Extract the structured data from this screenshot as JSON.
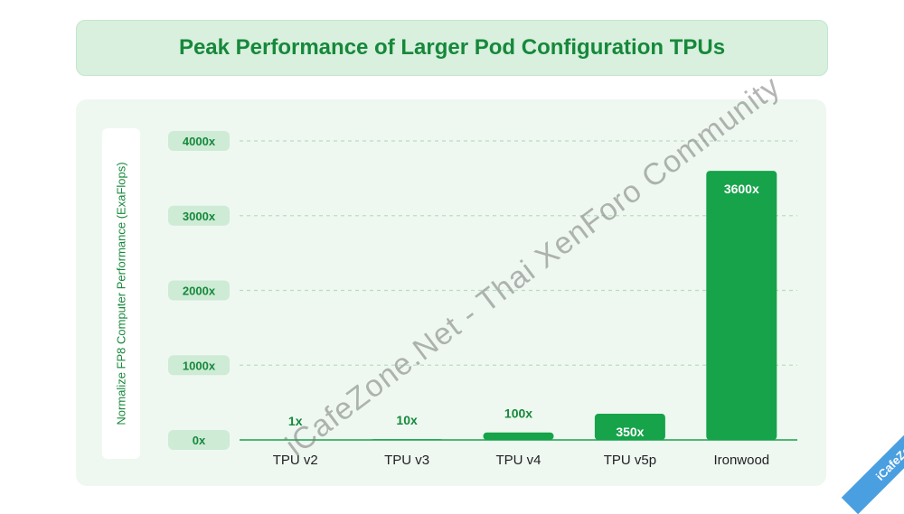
{
  "title": "Peak Performance of Larger Pod Configuration TPUs",
  "watermark": "iCafeZone.Net - Thai XenForo Community",
  "corner_badge": "iCafeZone",
  "colors": {
    "accent": "#16883b",
    "bar": "#16a34a",
    "panel": "#eef8f0",
    "banner": "#d8f0dd"
  },
  "chart_data": {
    "type": "bar",
    "title": "Peak Performance of Larger Pod Configuration TPUs",
    "xlabel": "",
    "ylabel": "Normalize FP8 Computer Performance (ExaFlops)",
    "categories": [
      "TPU v2",
      "TPU v3",
      "TPU v4",
      "TPU v5p",
      "Ironwood"
    ],
    "values": [
      1,
      10,
      100,
      350,
      3600
    ],
    "value_labels": [
      "1x",
      "10x",
      "100x",
      "350x",
      "3600x"
    ],
    "yticks": [
      0,
      1000,
      2000,
      3000,
      4000
    ],
    "ytick_labels": [
      "0x",
      "1000x",
      "2000x",
      "3000x",
      "4000x"
    ],
    "ylim": [
      0,
      4000
    ],
    "grid": true
  }
}
